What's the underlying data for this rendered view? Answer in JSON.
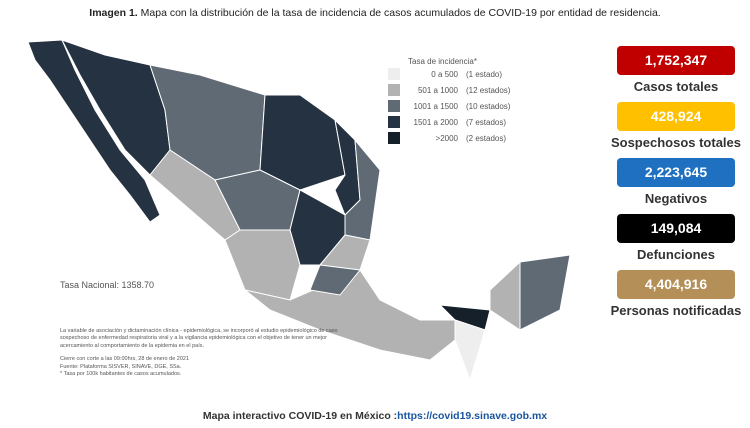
{
  "header": {
    "title_bold": "Imagen 1.",
    "title": "Mapa con la distribución de la tasa de incidencia de casos acumulados de COVID-19 por entidad de residencia."
  },
  "legend": {
    "title": "Tasa de incidencia*",
    "rows": [
      {
        "range": "0 a 500",
        "count": "(1 estado)",
        "color": "#eeeeee"
      },
      {
        "range": "501 a 1000",
        "count": "(12 estados)",
        "color": "#b2b2b2"
      },
      {
        "range": "1001 a 1500",
        "count": "(10 estados)",
        "color": "#5f6a74"
      },
      {
        "range": "1501 a 2000",
        "count": "(7 estados)",
        "color": "#253241"
      },
      {
        "range": ">2000",
        "count": "(2 estados)",
        "color": "#15202b"
      }
    ]
  },
  "national_rate": "Tasa Nacional: 1358.70",
  "notes": {
    "paragraph": "La variable de asociación y dictaminación clínica - epidemiológica, se incorporó al estudio epidemiológico de caso sospechoso de enfermedad respiratoria viral y a la vigilancia epidemiológica con el objetivo de tener un mejor acercamiento al comportamiento de la epidemia en el país.",
    "cutoff": "Cierre con corte a las 09:00hrs, 28 de enero de 2021",
    "source": "Fuente: Plataforma SISVER, SINAVE, DGE, SSa.",
    "footnote": "* Tasa por 100k habitantes de casos acumulados."
  },
  "stats": [
    {
      "value": "1,752,347",
      "label": "Casos totales",
      "color": "#c00000"
    },
    {
      "value": "428,924",
      "label": "Sospechosos totales",
      "color": "#ffc000"
    },
    {
      "value": "2,223,645",
      "label": "Negativos",
      "color": "#1f70c1"
    },
    {
      "value": "149,084",
      "label": "Defunciones",
      "color": "#000000"
    },
    {
      "value": "4,404,916",
      "label": "Personas notificadas",
      "color": "#b48f57"
    }
  ],
  "footer": {
    "text": "Mapa interactivo COVID-19 en México :",
    "link": "https://covid19.sinave.gob.mx"
  }
}
